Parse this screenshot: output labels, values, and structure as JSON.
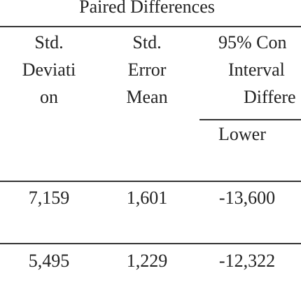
{
  "header": {
    "title": "Paired Differences"
  },
  "table": {
    "columns": [
      {
        "lines": [
          "Std.",
          "Deviati",
          "on"
        ]
      },
      {
        "lines": [
          "Std.",
          "Error",
          "Mean"
        ]
      },
      {
        "lines": [
          "95% Con",
          "Interval",
          "Differe"
        ],
        "sub_header": "Lower"
      }
    ],
    "rows": [
      [
        "7,159",
        "1,601",
        "-13,600"
      ],
      [
        "5,495",
        "1,229",
        "-12,322"
      ]
    ]
  }
}
